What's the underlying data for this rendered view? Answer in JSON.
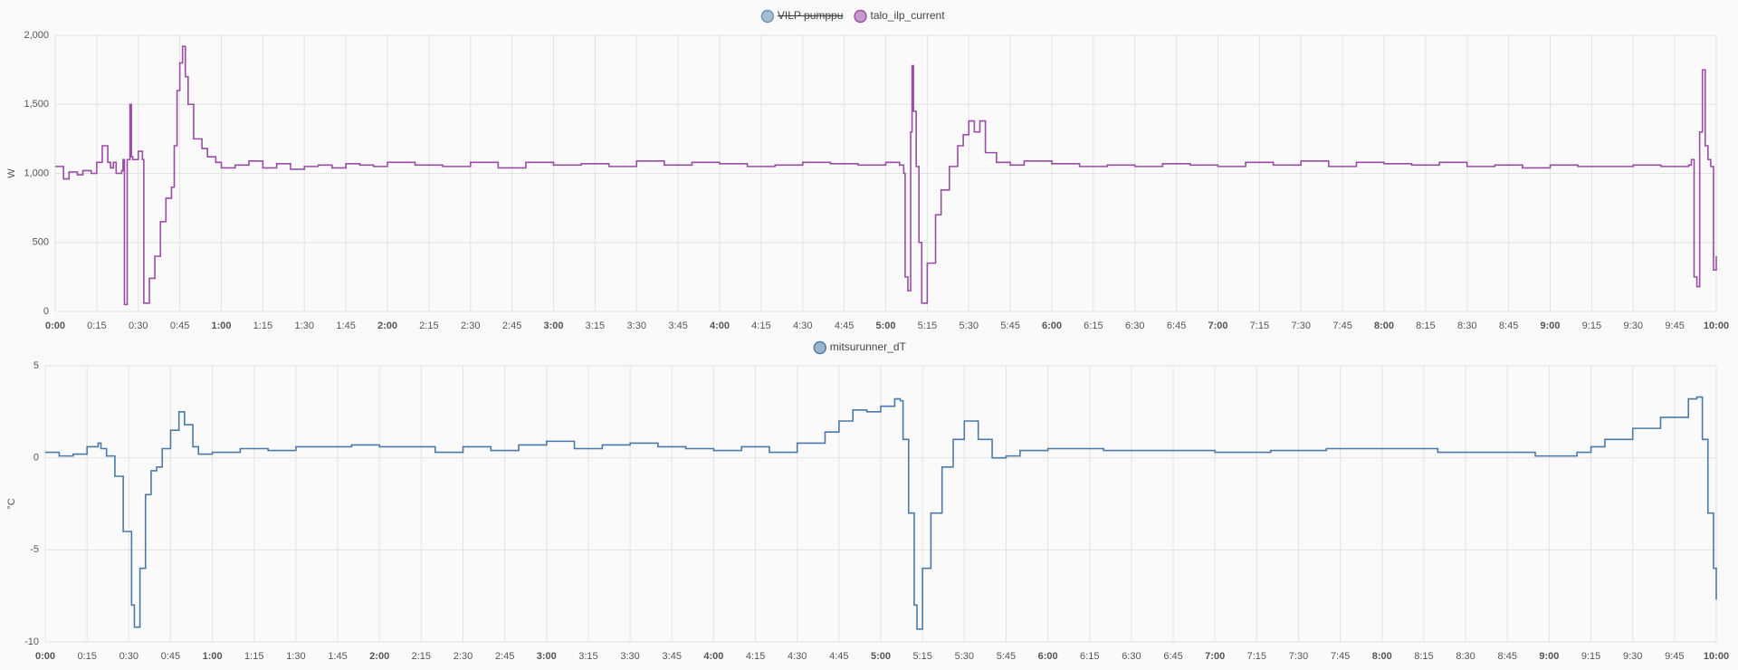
{
  "chart_data": [
    {
      "type": "line",
      "step": true,
      "y_label": "W",
      "grid": true,
      "hidden_series": [
        {
          "name": "VILP pumppu",
          "color": "#6d94bb"
        }
      ],
      "xlim": [
        0,
        600
      ],
      "xticks": [
        {
          "value": 0,
          "label": "0:00"
        },
        {
          "value": 15,
          "label": "0:15"
        },
        {
          "value": 30,
          "label": "0:30"
        },
        {
          "value": 45,
          "label": "0:45"
        },
        {
          "value": 60,
          "label": "1:00"
        },
        {
          "value": 75,
          "label": "1:15"
        },
        {
          "value": 90,
          "label": "1:30"
        },
        {
          "value": 105,
          "label": "1:45"
        },
        {
          "value": 120,
          "label": "2:00"
        },
        {
          "value": 135,
          "label": "2:15"
        },
        {
          "value": 150,
          "label": "2:30"
        },
        {
          "value": 165,
          "label": "2:45"
        },
        {
          "value": 180,
          "label": "3:00"
        },
        {
          "value": 195,
          "label": "3:15"
        },
        {
          "value": 210,
          "label": "3:30"
        },
        {
          "value": 225,
          "label": "3:45"
        },
        {
          "value": 240,
          "label": "4:00"
        },
        {
          "value": 255,
          "label": "4:15"
        },
        {
          "value": 270,
          "label": "4:30"
        },
        {
          "value": 285,
          "label": "4:45"
        },
        {
          "value": 300,
          "label": "5:00"
        },
        {
          "value": 315,
          "label": "5:15"
        },
        {
          "value": 330,
          "label": "5:30"
        },
        {
          "value": 345,
          "label": "5:45"
        },
        {
          "value": 360,
          "label": "6:00"
        },
        {
          "value": 375,
          "label": "6:15"
        },
        {
          "value": 390,
          "label": "6:30"
        },
        {
          "value": 405,
          "label": "6:45"
        },
        {
          "value": 420,
          "label": "7:00"
        },
        {
          "value": 435,
          "label": "7:15"
        },
        {
          "value": 450,
          "label": "7:30"
        },
        {
          "value": 465,
          "label": "7:45"
        },
        {
          "value": 480,
          "label": "8:00"
        },
        {
          "value": 495,
          "label": "8:15"
        },
        {
          "value": 510,
          "label": "8:30"
        },
        {
          "value": 525,
          "label": "8:45"
        },
        {
          "value": 540,
          "label": "9:00"
        },
        {
          "value": 555,
          "label": "9:15"
        },
        {
          "value": 570,
          "label": "9:30"
        },
        {
          "value": 585,
          "label": "9:45"
        },
        {
          "value": 600,
          "label": "10:00"
        }
      ],
      "ylim": [
        0,
        2000
      ],
      "yticks": [
        0,
        500,
        {
          "value": 1000,
          "label": "1,000"
        },
        {
          "value": 1500,
          "label": "1,500"
        },
        {
          "value": 2000,
          "label": "2,000"
        }
      ],
      "x": [
        0,
        3,
        5,
        8,
        10,
        13,
        15,
        17,
        19,
        20,
        21,
        22,
        24,
        24.5,
        25,
        26,
        27,
        27.5,
        28,
        30,
        31.5,
        32,
        34,
        36,
        38,
        40,
        42,
        43,
        44,
        45,
        46,
        47,
        48,
        50,
        53,
        55,
        58,
        60,
        65,
        70,
        75,
        80,
        85,
        90,
        95,
        100,
        105,
        110,
        115,
        120,
        130,
        140,
        150,
        160,
        170,
        180,
        190,
        200,
        210,
        220,
        230,
        240,
        250,
        260,
        270,
        280,
        290,
        300,
        305,
        306.5,
        307,
        308,
        309,
        309.5,
        310,
        311,
        312,
        313,
        315,
        318,
        320,
        323,
        326,
        328,
        330,
        332,
        334,
        336,
        340,
        345,
        350,
        360,
        370,
        380,
        390,
        400,
        410,
        420,
        430,
        440,
        450,
        460,
        470,
        480,
        490,
        500,
        510,
        520,
        530,
        540,
        550,
        560,
        570,
        580,
        590,
        591,
        592,
        593,
        594,
        595,
        596,
        597,
        598,
        599,
        600
      ],
      "series": [
        {
          "name": "talo_ilp_current",
          "color": "#9b4ca6",
          "values": [
            1050,
            960,
            1010,
            990,
            1020,
            1000,
            1080,
            1200,
            1080,
            1040,
            1080,
            1000,
            1020,
            1100,
            50,
            1100,
            1500,
            1120,
            1100,
            1160,
            1100,
            60,
            240,
            400,
            650,
            820,
            900,
            1200,
            1600,
            1800,
            1920,
            1700,
            1500,
            1250,
            1180,
            1120,
            1080,
            1040,
            1060,
            1090,
            1040,
            1070,
            1030,
            1050,
            1060,
            1040,
            1070,
            1060,
            1050,
            1080,
            1060,
            1050,
            1080,
            1040,
            1080,
            1060,
            1070,
            1050,
            1090,
            1060,
            1080,
            1070,
            1050,
            1060,
            1080,
            1070,
            1060,
            1080,
            1060,
            1000,
            250,
            150,
            1300,
            1780,
            1450,
            1050,
            500,
            60,
            350,
            700,
            880,
            1050,
            1200,
            1280,
            1380,
            1300,
            1380,
            1150,
            1080,
            1060,
            1090,
            1070,
            1050,
            1060,
            1050,
            1070,
            1060,
            1050,
            1080,
            1060,
            1090,
            1050,
            1080,
            1070,
            1060,
            1080,
            1050,
            1060,
            1040,
            1060,
            1050,
            1050,
            1060,
            1050,
            1060,
            1100,
            250,
            180,
            1300,
            1750,
            1200,
            1100,
            1050,
            300,
            400
          ]
        }
      ]
    },
    {
      "type": "line",
      "step": true,
      "y_label": "°C",
      "grid": true,
      "xlim": [
        0,
        600
      ],
      "xticks": [
        {
          "value": 0,
          "label": "0:00"
        },
        {
          "value": 15,
          "label": "0:15"
        },
        {
          "value": 30,
          "label": "0:30"
        },
        {
          "value": 45,
          "label": "0:45"
        },
        {
          "value": 60,
          "label": "1:00"
        },
        {
          "value": 75,
          "label": "1:15"
        },
        {
          "value": 90,
          "label": "1:30"
        },
        {
          "value": 105,
          "label": "1:45"
        },
        {
          "value": 120,
          "label": "2:00"
        },
        {
          "value": 135,
          "label": "2:15"
        },
        {
          "value": 150,
          "label": "2:30"
        },
        {
          "value": 165,
          "label": "2:45"
        },
        {
          "value": 180,
          "label": "3:00"
        },
        {
          "value": 195,
          "label": "3:15"
        },
        {
          "value": 210,
          "label": "3:30"
        },
        {
          "value": 225,
          "label": "3:45"
        },
        {
          "value": 240,
          "label": "4:00"
        },
        {
          "value": 255,
          "label": "4:15"
        },
        {
          "value": 270,
          "label": "4:30"
        },
        {
          "value": 285,
          "label": "4:45"
        },
        {
          "value": 300,
          "label": "5:00"
        },
        {
          "value": 315,
          "label": "5:15"
        },
        {
          "value": 330,
          "label": "5:30"
        },
        {
          "value": 345,
          "label": "5:45"
        },
        {
          "value": 360,
          "label": "6:00"
        },
        {
          "value": 375,
          "label": "6:15"
        },
        {
          "value": 390,
          "label": "6:30"
        },
        {
          "value": 405,
          "label": "6:45"
        },
        {
          "value": 420,
          "label": "7:00"
        },
        {
          "value": 435,
          "label": "7:15"
        },
        {
          "value": 450,
          "label": "7:30"
        },
        {
          "value": 465,
          "label": "7:45"
        },
        {
          "value": 480,
          "label": "8:00"
        },
        {
          "value": 495,
          "label": "8:15"
        },
        {
          "value": 510,
          "label": "8:30"
        },
        {
          "value": 525,
          "label": "8:45"
        },
        {
          "value": 540,
          "label": "9:00"
        },
        {
          "value": 555,
          "label": "9:15"
        },
        {
          "value": 570,
          "label": "9:30"
        },
        {
          "value": 585,
          "label": "9:45"
        },
        {
          "value": 600,
          "label": "10:00"
        }
      ],
      "ylim": [
        -10,
        5
      ],
      "yticks": [
        -10,
        -5,
        0,
        5
      ],
      "x": [
        0,
        5,
        10,
        15,
        19,
        20,
        22,
        25,
        28,
        31,
        32,
        34,
        36,
        38,
        40,
        42,
        45,
        48,
        50,
        53,
        55,
        60,
        70,
        80,
        90,
        100,
        110,
        120,
        140,
        150,
        160,
        170,
        180,
        190,
        200,
        210,
        220,
        230,
        240,
        250,
        260,
        270,
        280,
        285,
        290,
        295,
        300,
        305,
        307,
        308,
        310,
        312,
        313,
        315,
        318,
        322,
        326,
        330,
        335,
        340,
        345,
        350,
        360,
        380,
        400,
        420,
        440,
        460,
        480,
        500,
        520,
        535,
        545,
        550,
        555,
        560,
        570,
        580,
        590,
        593,
        595,
        597,
        599,
        600
      ],
      "series": [
        {
          "name": "mitsurunner_dT",
          "color": "#4b7aa6",
          "values": [
            0.3,
            0.1,
            0.2,
            0.6,
            0.8,
            0.5,
            0.1,
            -1,
            -4,
            -8,
            -9.2,
            -6,
            -2,
            -0.7,
            -0.5,
            0.5,
            1.5,
            2.5,
            1.8,
            0.6,
            0.2,
            0.3,
            0.5,
            0.4,
            0.6,
            0.6,
            0.7,
            0.6,
            0.3,
            0.6,
            0.4,
            0.7,
            0.9,
            0.5,
            0.7,
            0.8,
            0.6,
            0.5,
            0.4,
            0.6,
            0.3,
            0.8,
            1.4,
            2.0,
            2.6,
            2.5,
            2.8,
            3.2,
            3.1,
            1,
            -3,
            -8,
            -9.3,
            -6,
            -3,
            -0.5,
            1,
            2.0,
            1,
            0,
            0.1,
            0.4,
            0.5,
            0.4,
            0.4,
            0.3,
            0.4,
            0.5,
            0.5,
            0.3,
            0.3,
            0.1,
            0.1,
            0.3,
            0.6,
            1.0,
            1.6,
            2.2,
            3.2,
            3.3,
            1,
            -3,
            -6,
            -7.7
          ]
        }
      ]
    }
  ]
}
